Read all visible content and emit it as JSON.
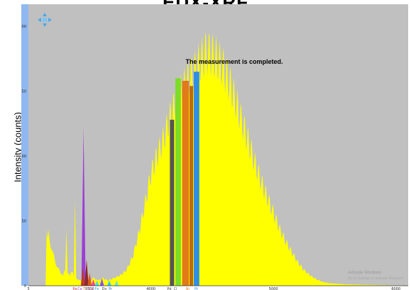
{
  "chart_data": {
    "type": "area",
    "title": "EDX-XRF",
    "ylabel": "Intensity (counts)",
    "ylim": [
      0,
      217
    ],
    "xlim": [
      3,
      6.1
    ],
    "y_ticks": [
      "0",
      "50",
      "100",
      "150",
      "200"
    ],
    "x_ticks": [
      {
        "v": 3,
        "label": "3"
      },
      {
        "v": 3.5,
        "label": "3500"
      },
      {
        "v": 4,
        "label": "4000"
      },
      {
        "v": 5,
        "label": "5000"
      },
      {
        "v": 6,
        "label": "6000"
      }
    ],
    "grid": false,
    "plot_bg": "#c0c0c0",
    "fill_color": "#ffff00",
    "spectrum": [
      [
        3.0,
        0
      ],
      [
        3.14,
        0
      ],
      [
        3.15,
        42
      ],
      [
        3.17,
        38
      ],
      [
        3.2,
        24
      ],
      [
        3.23,
        16
      ],
      [
        3.26,
        10
      ],
      [
        3.28,
        8
      ],
      [
        3.3,
        12
      ],
      [
        3.31,
        40
      ],
      [
        3.32,
        10
      ],
      [
        3.34,
        8
      ],
      [
        3.36,
        12
      ],
      [
        3.37,
        6
      ],
      [
        3.38,
        66
      ],
      [
        3.39,
        6
      ],
      [
        3.42,
        4
      ],
      [
        3.47,
        3
      ],
      [
        3.5,
        3
      ],
      [
        3.53,
        6
      ],
      [
        3.57,
        4
      ],
      [
        3.6,
        6
      ],
      [
        3.65,
        4
      ],
      [
        3.7,
        6
      ],
      [
        3.75,
        8
      ],
      [
        3.8,
        12
      ],
      [
        3.85,
        22
      ],
      [
        3.9,
        40
      ],
      [
        3.95,
        62
      ],
      [
        4.0,
        86
      ],
      [
        4.05,
        100
      ],
      [
        4.1,
        112
      ],
      [
        4.15,
        128
      ],
      [
        4.2,
        140
      ],
      [
        4.25,
        150
      ],
      [
        4.3,
        158
      ],
      [
        4.35,
        164
      ],
      [
        4.4,
        172
      ],
      [
        4.45,
        180
      ],
      [
        4.5,
        178
      ],
      [
        4.55,
        174
      ],
      [
        4.6,
        166
      ],
      [
        4.65,
        154
      ],
      [
        4.7,
        140
      ],
      [
        4.75,
        124
      ],
      [
        4.8,
        110
      ],
      [
        4.85,
        94
      ],
      [
        4.9,
        80
      ],
      [
        4.95,
        68
      ],
      [
        5.0,
        56
      ],
      [
        5.05,
        44
      ],
      [
        5.1,
        34
      ],
      [
        5.15,
        26
      ],
      [
        5.2,
        18
      ],
      [
        5.25,
        12
      ],
      [
        5.3,
        8
      ],
      [
        5.35,
        5
      ],
      [
        5.4,
        3
      ],
      [
        5.45,
        2
      ],
      [
        5.6,
        1
      ],
      [
        6.1,
        0
      ]
    ],
    "element_bands": [
      {
        "element": "Pd",
        "x0": 4.155,
        "x1": 4.19,
        "y": 128,
        "color": "#555555"
      },
      {
        "element": "green",
        "x0": 4.2,
        "x1": 4.245,
        "y": 160,
        "color": "#7ddc28"
      },
      {
        "element": "orange",
        "x0": 4.255,
        "x1": 4.31,
        "y": 158,
        "color": "#e27a18"
      },
      {
        "element": "Ni",
        "x0": 4.315,
        "x1": 4.345,
        "y": 154,
        "color": "#c06a10"
      },
      {
        "element": "Pt",
        "x0": 4.35,
        "x1": 4.395,
        "y": 165,
        "color": "#2f8fe6"
      }
    ],
    "element_peaks": [
      {
        "x": 3.45,
        "y": 122,
        "color": "#9b3fd6"
      },
      {
        "x": 3.445,
        "y": 14,
        "color": "#c0392b"
      },
      {
        "x": 3.475,
        "y": 20,
        "color": "#8b2a2a"
      },
      {
        "x": 3.5,
        "y": 10,
        "color": "#e05a20"
      },
      {
        "x": 3.53,
        "y": 5,
        "color": "#ff40a0"
      },
      {
        "x": 3.56,
        "y": 4,
        "color": "#40e0e0"
      },
      {
        "x": 3.6,
        "y": 6,
        "color": "#9050ff"
      },
      {
        "x": 3.66,
        "y": 4,
        "color": "#30c8ff"
      },
      {
        "x": 3.72,
        "y": 4,
        "color": "#60e8d0"
      }
    ],
    "element_labels": [
      {
        "x": 3.38,
        "text": "Re",
        "color": "#d04040"
      },
      {
        "x": 3.42,
        "text": "Ce",
        "color": "#a040c0"
      },
      {
        "x": 3.46,
        "text": "Ti",
        "color": "#c07020"
      },
      {
        "x": 3.51,
        "text": "Ca",
        "color": "#e050a0"
      },
      {
        "x": 3.56,
        "text": "Fe",
        "color": "#30a0e0"
      },
      {
        "x": 3.62,
        "text": "Dv",
        "color": "#333333"
      },
      {
        "x": 3.67,
        "text": "Pr",
        "color": "#3070c0"
      },
      {
        "x": 4.15,
        "text": "Pd",
        "color": "#333333"
      },
      {
        "x": 4.2,
        "text": "Cl",
        "color": "#555555"
      },
      {
        "x": 4.3,
        "text": "Ni",
        "color": "#e07a18"
      },
      {
        "x": 4.37,
        "text": "Pt",
        "color": "#2f8fe6"
      }
    ],
    "status_text": "The measurement is completed.",
    "watermark_lines": [
      "Activate Windows",
      "Go to Settings to activate Windows."
    ]
  }
}
